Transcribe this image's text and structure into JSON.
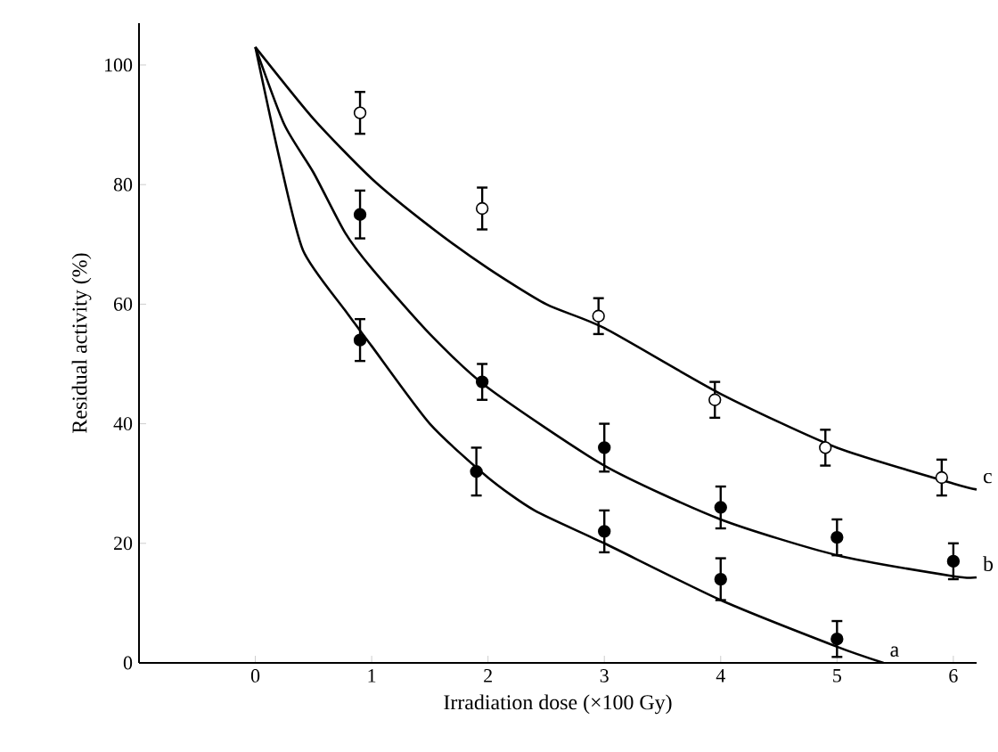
{
  "chart_data": {
    "type": "scatter",
    "xlabel": "Irradiation dose (×100 Gy)",
    "ylabel": "Residual activity (%)",
    "xlim": [
      -1,
      6.2
    ],
    "ylim": [
      0,
      107
    ],
    "xticks": [
      0,
      1,
      2,
      3,
      4,
      5,
      6
    ],
    "yticks": [
      0,
      20,
      40,
      60,
      80,
      100
    ],
    "series": [
      {
        "marker": "circle",
        "color": "#ffffff",
        "x": [
          0.9,
          1.95,
          2.95,
          3.95,
          4.9,
          5.9
        ],
        "values": [
          92,
          76,
          58,
          44,
          36,
          31
        ],
        "errors": [
          3.5,
          3.5,
          3,
          3,
          3,
          3
        ]
      },
      {
        "marker": "circle",
        "color": "#000000",
        "x": [
          0.9,
          1.95,
          3.0,
          4.0,
          5.0,
          6.0
        ],
        "values": [
          75,
          47,
          36,
          26,
          21,
          17
        ],
        "errors": [
          4,
          3,
          4,
          3.5,
          3,
          3
        ]
      },
      {
        "marker": "circle",
        "color": "#000000",
        "x": [
          0.9,
          1.9,
          3.0,
          4.0,
          5.0
        ],
        "values": [
          54,
          32,
          22,
          14,
          4
        ],
        "errors": [
          3.5,
          4,
          3.5,
          3.5,
          3
        ]
      },
      {
        "type": "line",
        "name": "c",
        "marker": "none",
        "line_style": "solid",
        "color": "#000000",
        "x": [
          0,
          0.5,
          1,
          1.5,
          2,
          2.5,
          3,
          4,
          5,
          6,
          6.2
        ],
        "values": [
          103,
          91,
          81,
          73,
          66,
          60,
          56,
          45,
          36,
          30,
          29
        ]
      },
      {
        "type": "line",
        "name": "b",
        "marker": "none",
        "line_style": "solid",
        "color": "#000000",
        "x": [
          0,
          0.25,
          0.5,
          0.77,
          1,
          1.5,
          2,
          3,
          4,
          5,
          6,
          6.2
        ],
        "values": [
          103,
          90,
          82,
          72,
          66,
          55,
          46,
          33,
          24,
          18,
          14.5,
          14.3
        ]
      },
      {
        "type": "line",
        "name": "a",
        "marker": "none",
        "line_style": "solid",
        "color": "#000000",
        "x": [
          0,
          0.2,
          0.41,
          0.77,
          1,
          1.5,
          2,
          2.4,
          3,
          4,
          5,
          5.4
        ],
        "values": [
          103,
          85,
          69,
          59,
          53,
          40,
          31,
          25.5,
          20,
          10.5,
          2.7,
          0
        ]
      }
    ]
  }
}
